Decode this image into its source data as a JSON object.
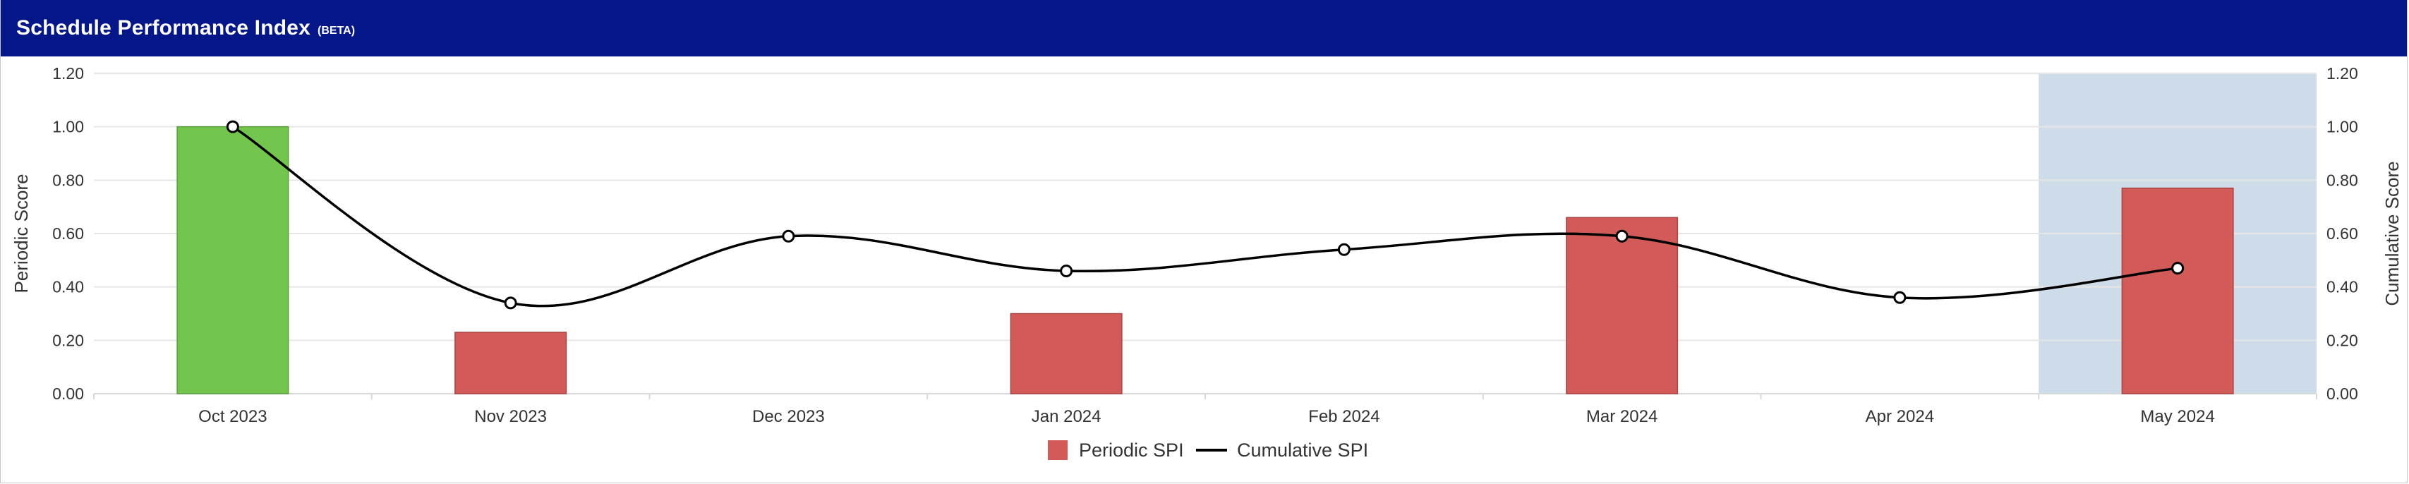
{
  "header": {
    "title": "Schedule Performance Index",
    "badge": "(BETA)"
  },
  "colors": {
    "header_bg": "#051688",
    "bar_good": "#73c54d",
    "bar_bad": "#d25b5a",
    "highlight_band": "#cddce8",
    "line": "#000000"
  },
  "chart_data": {
    "type": "bar",
    "categories": [
      "Oct 2023",
      "Nov 2023",
      "Dec 2023",
      "Jan 2024",
      "Feb 2024",
      "Mar 2024",
      "Apr 2024",
      "May 2024"
    ],
    "series": [
      {
        "name": "Periodic SPI",
        "type": "bar",
        "axis": "left",
        "values": [
          1.0,
          0.23,
          null,
          0.3,
          null,
          0.66,
          null,
          0.77
        ],
        "colors": [
          "#73c54d",
          "#d25b5a",
          "#d25b5a",
          "#d25b5a",
          "#d25b5a",
          "#d25b5a",
          "#d25b5a",
          "#d25b5a"
        ]
      },
      {
        "name": "Cumulative SPI",
        "type": "line",
        "axis": "right",
        "values": [
          1.0,
          0.34,
          0.59,
          0.46,
          0.54,
          0.59,
          0.36,
          0.47
        ]
      }
    ],
    "ylabel": "Periodic Score",
    "y2label": "Cumulative Score",
    "ylim": [
      0,
      1.2
    ],
    "y2lim": [
      0,
      1.2
    ],
    "yticks": [
      "0.00",
      "0.20",
      "0.40",
      "0.60",
      "0.80",
      "1.00",
      "1.20"
    ],
    "y2ticks": [
      "0.00",
      "0.20",
      "0.40",
      "0.60",
      "0.80",
      "1.00",
      "1.20"
    ],
    "highlight_category": "May 2024",
    "legend_position": "bottom-center",
    "grid": true
  }
}
